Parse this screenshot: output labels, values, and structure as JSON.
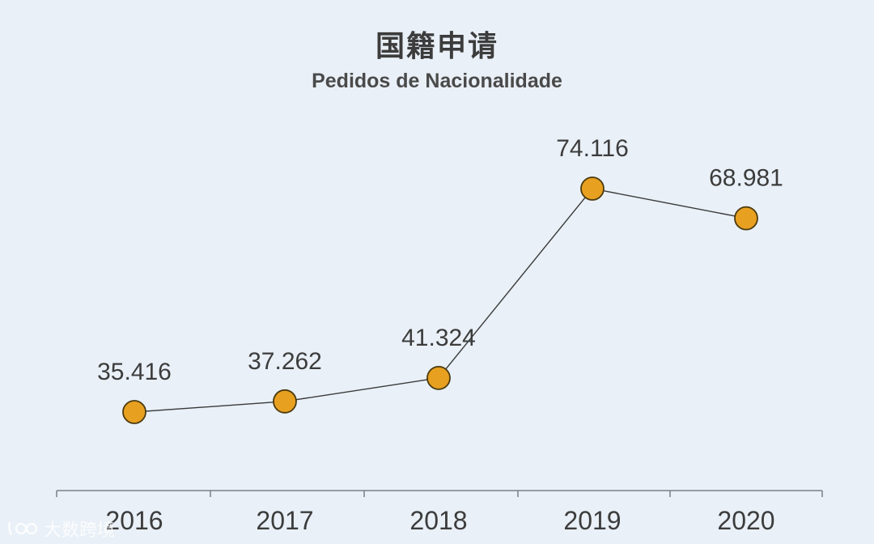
{
  "chart_data": {
    "type": "line",
    "title": "国籍申请",
    "subtitle": "Pedidos de Nacionalidade",
    "categories": [
      "2016",
      "2017",
      "2018",
      "2019",
      "2020"
    ],
    "values": [
      35416,
      37262,
      41324,
      74116,
      68981
    ],
    "data_labels": [
      "35.416",
      "37.262",
      "41.324",
      "74.116",
      "68.981"
    ],
    "xlabel": "",
    "ylabel": "",
    "ylim": [
      30000,
      80000
    ],
    "grid": false,
    "legend": "none"
  },
  "colors": {
    "background": "#e9f0f7",
    "marker_fill": "#e8a020",
    "marker_stroke": "#4a3a10",
    "line": "#3a3a3a",
    "axis": "#7a8088",
    "text": "#3c3c3c"
  },
  "watermark": {
    "text": "大数跨境",
    "icon": "brand-logo-icon"
  }
}
